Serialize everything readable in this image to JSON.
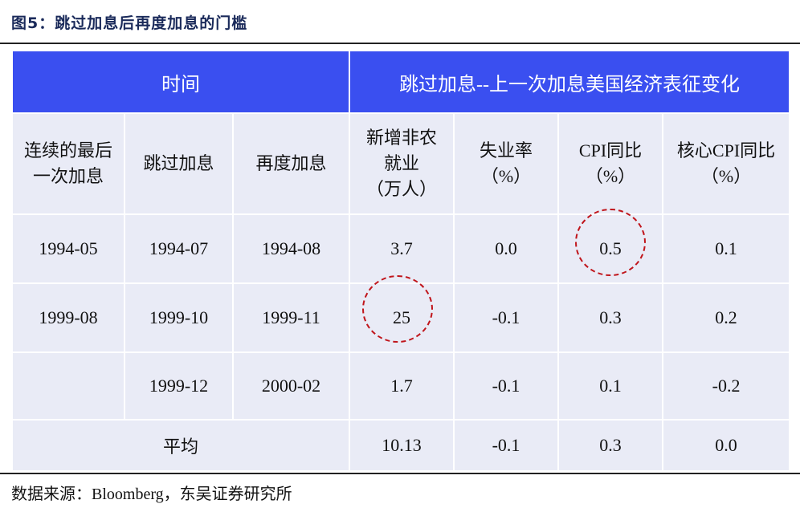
{
  "title": "图5：跳过加息后再度加息的门槛",
  "table": {
    "group_header": {
      "time": "时间",
      "change": "跳过加息--上一次加息美国经济表征变化"
    },
    "sub_headers": [
      "连续的最后一次加息",
      "跳过加息",
      "再度加息",
      "新增非农就业（万人）",
      "失业率（%）",
      "CPI同比（%）",
      "核心CPI同比（%）"
    ],
    "rows": [
      [
        "1994-05",
        "1994-07",
        "1994-08",
        "3.7",
        "0.0",
        "0.5",
        "0.1"
      ],
      [
        "1999-08",
        "1999-10",
        "1999-11",
        "25",
        "-0.1",
        "0.3",
        "0.2"
      ],
      [
        "",
        "1999-12",
        "2000-02",
        "1.7",
        "-0.1",
        "0.1",
        "-0.2"
      ]
    ],
    "average_row": [
      "平均",
      "10.13",
      "-0.1",
      "0.3",
      "0.0"
    ],
    "header_color": "#3a4ff0",
    "row_color": "#e9ebf6",
    "highlight_color": "#c0151b"
  },
  "source": "数据来源：Bloomberg，东吴证券研究所"
}
